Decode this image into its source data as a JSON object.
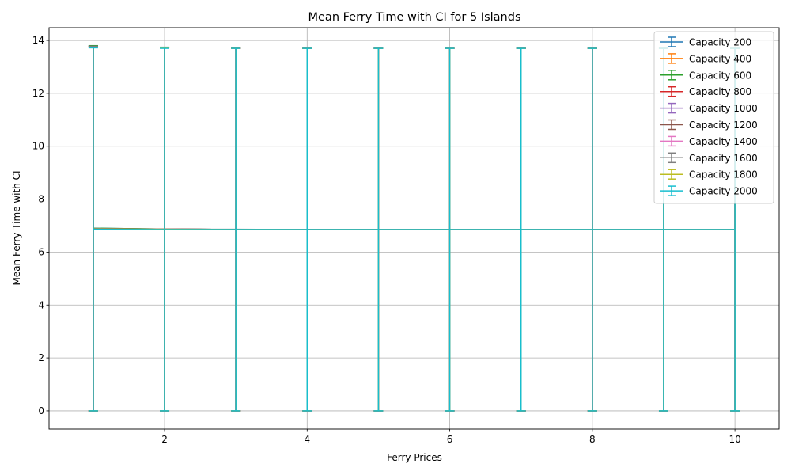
{
  "chart_data": {
    "type": "line",
    "title": "Mean Ferry Time with CI for 5 Islands",
    "xlabel": "Ferry Prices",
    "ylabel": "Mean Ferry Time with CI",
    "x": [
      1,
      2,
      3,
      4,
      5,
      6,
      7,
      8,
      9,
      10
    ],
    "xlim": [
      0.38,
      10.62
    ],
    "ylim": [
      -0.69,
      14.48
    ],
    "xticks": [
      2,
      4,
      6,
      8,
      10
    ],
    "yticks": [
      0,
      2,
      4,
      6,
      8,
      10,
      12,
      14
    ],
    "grid": true,
    "legend_position": "top-right",
    "error_bars": true,
    "series": [
      {
        "name": "Capacity 200",
        "color": "#1f77b4",
        "values": [
          6.9,
          6.87,
          6.85,
          6.85,
          6.85,
          6.85,
          6.85,
          6.85,
          6.85,
          6.85
        ],
        "ci_low": [
          0,
          0,
          0,
          0,
          0,
          0,
          0,
          0,
          0,
          0
        ],
        "ci_high": [
          13.8,
          13.74,
          13.7,
          13.7,
          13.7,
          13.7,
          13.7,
          13.7,
          13.7,
          13.7
        ]
      },
      {
        "name": "Capacity 400",
        "color": "#ff7f0e",
        "values": [
          6.88,
          6.86,
          6.85,
          6.85,
          6.85,
          6.85,
          6.85,
          6.85,
          6.85,
          6.85
        ],
        "ci_low": [
          0,
          0,
          0,
          0,
          0,
          0,
          0,
          0,
          0,
          0
        ],
        "ci_high": [
          13.76,
          13.72,
          13.7,
          13.7,
          13.7,
          13.7,
          13.7,
          13.7,
          13.7,
          13.7
        ]
      },
      {
        "name": "Capacity 600",
        "color": "#2ca02c",
        "values": [
          6.9,
          6.87,
          6.85,
          6.85,
          6.85,
          6.85,
          6.85,
          6.85,
          6.85,
          6.85
        ],
        "ci_low": [
          0,
          0,
          0,
          0,
          0,
          0,
          0,
          0,
          0,
          0
        ],
        "ci_high": [
          13.8,
          13.74,
          13.7,
          13.7,
          13.7,
          13.7,
          13.7,
          13.7,
          13.7,
          13.7
        ]
      },
      {
        "name": "Capacity 800",
        "color": "#d62728",
        "values": [
          6.88,
          6.87,
          6.85,
          6.85,
          6.85,
          6.85,
          6.85,
          6.85,
          6.85,
          6.85
        ],
        "ci_low": [
          0,
          0,
          0,
          0,
          0,
          0,
          0,
          0,
          0,
          0
        ],
        "ci_high": [
          13.76,
          13.74,
          13.7,
          13.7,
          13.7,
          13.7,
          13.7,
          13.7,
          13.7,
          13.7
        ]
      },
      {
        "name": "Capacity 1000",
        "color": "#9467bd",
        "values": [
          6.88,
          6.86,
          6.85,
          6.85,
          6.85,
          6.85,
          6.85,
          6.85,
          6.85,
          6.85
        ],
        "ci_low": [
          0,
          0,
          0,
          0,
          0,
          0,
          0,
          0,
          0,
          0
        ],
        "ci_high": [
          13.76,
          13.72,
          13.7,
          13.7,
          13.7,
          13.7,
          13.7,
          13.7,
          13.7,
          13.7
        ]
      },
      {
        "name": "Capacity 1200",
        "color": "#8c564b",
        "values": [
          6.88,
          6.87,
          6.85,
          6.85,
          6.85,
          6.85,
          6.85,
          6.85,
          6.85,
          6.85
        ],
        "ci_low": [
          0,
          0,
          0,
          0,
          0,
          0,
          0,
          0,
          0,
          0
        ],
        "ci_high": [
          13.76,
          13.74,
          13.7,
          13.7,
          13.7,
          13.7,
          13.7,
          13.7,
          13.7,
          13.7
        ]
      },
      {
        "name": "Capacity 1400",
        "color": "#e377c2",
        "values": [
          6.87,
          6.86,
          6.85,
          6.85,
          6.85,
          6.85,
          6.85,
          6.85,
          6.85,
          6.85
        ],
        "ci_low": [
          0,
          0,
          0,
          0,
          0,
          0,
          0,
          0,
          0,
          0
        ],
        "ci_high": [
          13.74,
          13.72,
          13.7,
          13.7,
          13.7,
          13.7,
          13.7,
          13.7,
          13.7,
          13.7
        ]
      },
      {
        "name": "Capacity 1600",
        "color": "#7f7f7f",
        "values": [
          6.89,
          6.86,
          6.86,
          6.85,
          6.85,
          6.85,
          6.85,
          6.85,
          6.85,
          6.85
        ],
        "ci_low": [
          0,
          0,
          0,
          0,
          0,
          0,
          0,
          0,
          0,
          0
        ],
        "ci_high": [
          13.78,
          13.72,
          13.72,
          13.7,
          13.7,
          13.7,
          13.7,
          13.7,
          13.7,
          13.7
        ]
      },
      {
        "name": "Capacity 1800",
        "color": "#bcbd22",
        "values": [
          6.87,
          6.86,
          6.85,
          6.85,
          6.85,
          6.85,
          6.85,
          6.85,
          6.85,
          6.85
        ],
        "ci_low": [
          0,
          0,
          0,
          0,
          0,
          0,
          0,
          0,
          0,
          0
        ],
        "ci_high": [
          13.74,
          13.72,
          13.7,
          13.7,
          13.7,
          13.7,
          13.7,
          13.7,
          13.7,
          13.7
        ]
      },
      {
        "name": "Capacity 2000",
        "color": "#17becf",
        "values": [
          6.86,
          6.85,
          6.85,
          6.85,
          6.85,
          6.85,
          6.85,
          6.85,
          6.85,
          6.85
        ],
        "ci_low": [
          0,
          0,
          0,
          0,
          0,
          0,
          0,
          0,
          0,
          0
        ],
        "ci_high": [
          13.72,
          13.7,
          13.7,
          13.7,
          13.7,
          13.7,
          13.7,
          13.7,
          13.7,
          13.7
        ]
      }
    ]
  }
}
